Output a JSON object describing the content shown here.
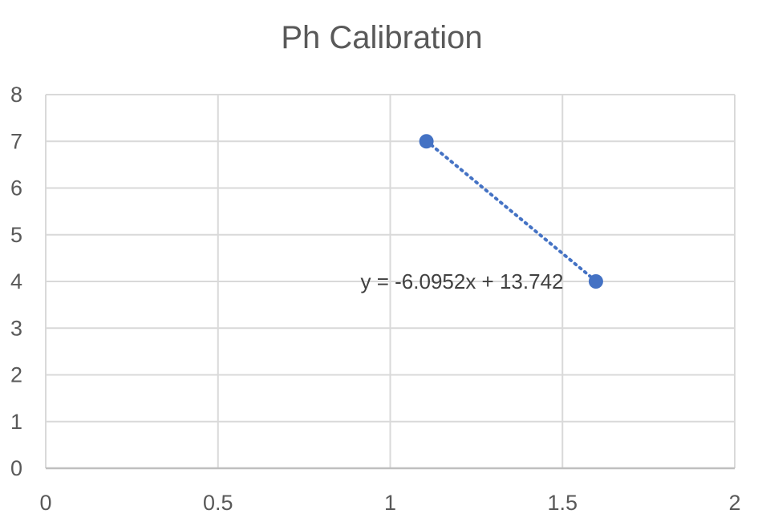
{
  "chart_data": {
    "type": "scatter",
    "title": "Ph Calibration",
    "xlabel": "",
    "ylabel": "",
    "xlim": [
      0,
      2
    ],
    "ylim": [
      0,
      8
    ],
    "x_ticks": [
      "0",
      "0.5",
      "1",
      "1.5",
      "2"
    ],
    "y_ticks": [
      "0",
      "1",
      "2",
      "3",
      "4",
      "5",
      "6",
      "7",
      "8"
    ],
    "grid": true,
    "series": [
      {
        "points": [
          {
            "x": 1.105,
            "y": 7
          },
          {
            "x": 1.597,
            "y": 4
          }
        ],
        "color": "#4472C4"
      }
    ],
    "trendline": {
      "type": "linear",
      "slope": -6.0952,
      "intercept": 13.742,
      "equation_label": "y = -6.0952x + 13.742",
      "style": "dotted",
      "color": "#4472C4"
    }
  }
}
